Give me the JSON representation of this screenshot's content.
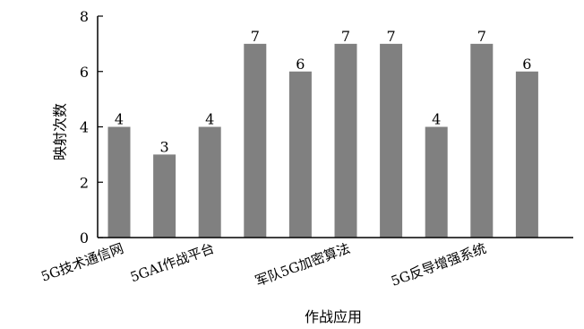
{
  "chart_data": {
    "type": "bar",
    "categories": [
      "5G技术通信网",
      "",
      "5GAI作战平台",
      "",
      "",
      "军队5G加密算法",
      "",
      "",
      "5G反导增强系统",
      ""
    ],
    "values": [
      4,
      3,
      4,
      7,
      6,
      7,
      7,
      4,
      7,
      6
    ],
    "xlabel": "作战应用",
    "ylabel": "映射次数",
    "ylim": [
      0,
      8
    ],
    "yticks": [
      0,
      2,
      4,
      6,
      8
    ],
    "bar_color": "#808080",
    "grid": false,
    "data_labels": true
  }
}
